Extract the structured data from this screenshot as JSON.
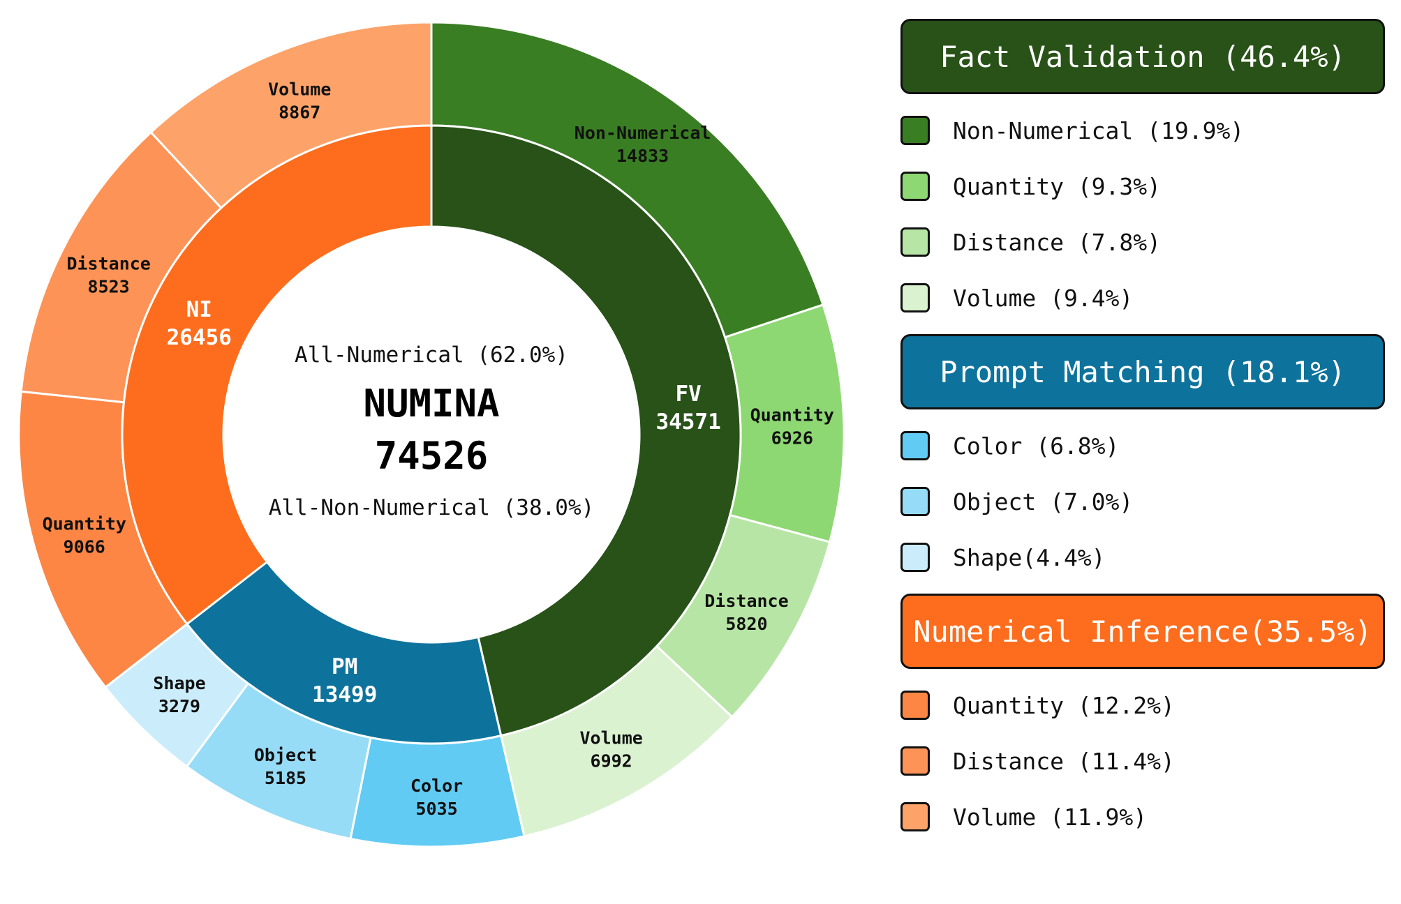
{
  "chart_data": {
    "type": "pie",
    "subtype": "nested-donut",
    "center": {
      "top_text": "All-Numerical (62.0%)",
      "title": "NUMINA",
      "total": "74526",
      "bottom_text": "All-Non-Numerical (38.0%)"
    },
    "inner_ring": [
      {
        "label": "FV",
        "value": 34571,
        "color": "#285218"
      },
      {
        "label": "PM",
        "value": 13499,
        "color": "#0e739c"
      },
      {
        "label": "NI",
        "value": 26456,
        "color": "#fd6d1d"
      }
    ],
    "outer_ring": [
      {
        "label": "Non-Numerical",
        "value": 14833,
        "color": "#3a7e23",
        "parent": "FV"
      },
      {
        "label": "Quantity",
        "value": 6926,
        "color": "#8dd872",
        "parent": "FV"
      },
      {
        "label": "Distance",
        "value": 5820,
        "color": "#b7e5a5",
        "parent": "FV"
      },
      {
        "label": "Volume",
        "value": 6992,
        "color": "#daf2d0",
        "parent": "FV"
      },
      {
        "label": "Color",
        "value": 5035,
        "color": "#61cbf3",
        "parent": "PM"
      },
      {
        "label": "Object",
        "value": 5185,
        "color": "#96dcf7",
        "parent": "PM"
      },
      {
        "label": "Shape",
        "value": 3279,
        "color": "#cbedfb",
        "parent": "PM"
      },
      {
        "label": "Quantity",
        "value": 9066,
        "color": "#fd8645",
        "parent": "NI"
      },
      {
        "label": "Distance",
        "value": 8523,
        "color": "#fd9356",
        "parent": "NI"
      },
      {
        "label": "Volume",
        "value": 8867,
        "color": "#fda36a",
        "parent": "NI"
      }
    ]
  },
  "legend": [
    {
      "header": "Fact Validation (46.4%)",
      "color": "#285218",
      "items": [
        {
          "text": "Non-Numerical (19.9%)",
          "color": "#3a7e23"
        },
        {
          "text": "Quantity (9.3%)",
          "color": "#8dd872"
        },
        {
          "text": "Distance (7.8%)",
          "color": "#b7e5a5"
        },
        {
          "text": "Volume (9.4%)",
          "color": "#daf2d0"
        }
      ]
    },
    {
      "header": "Prompt Matching (18.1%)",
      "color": "#0e739c",
      "items": [
        {
          "text": "Color (6.8%)",
          "color": "#61cbf3"
        },
        {
          "text": "Object (7.0%)",
          "color": "#96dcf7"
        },
        {
          "text": "Shape(4.4%)",
          "color": "#cbedfb"
        }
      ]
    },
    {
      "header": "Numerical Inference(35.5%)",
      "color": "#fd6d1d",
      "items": [
        {
          "text": "Quantity (12.2%)",
          "color": "#fd8645"
        },
        {
          "text": "Distance (11.4%)",
          "color": "#fd9356"
        },
        {
          "text": "Volume (11.9%)",
          "color": "#fda36a"
        }
      ]
    }
  ]
}
